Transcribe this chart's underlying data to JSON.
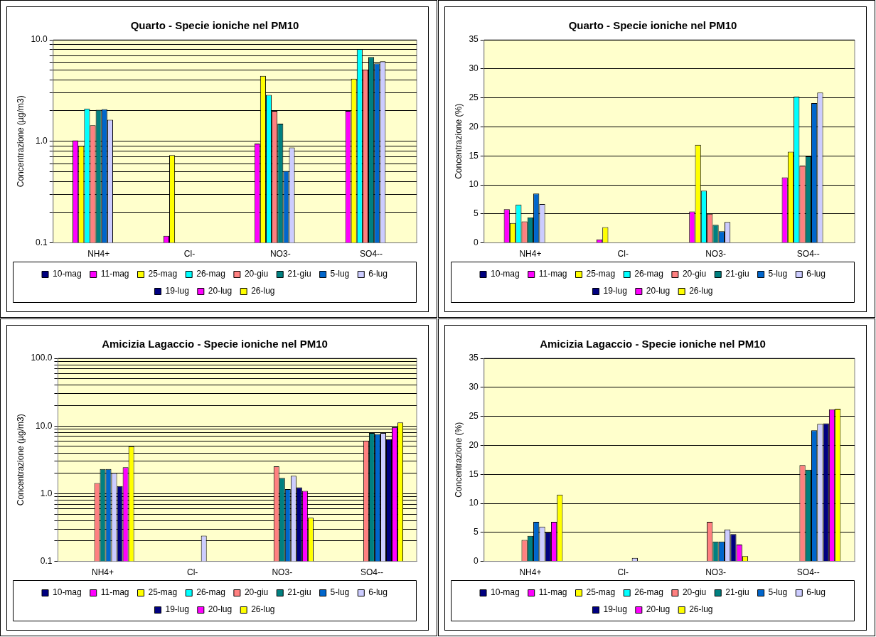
{
  "chart_data": [
    {
      "type": "bar",
      "title": "Quarto - Specie ioniche nel PM10",
      "ylabel": "Concentrazione (µg/m3)",
      "categories": [
        "NH4+",
        "Cl-",
        "NO3-",
        "SO4--"
      ],
      "log": "y",
      "ylim": [
        0.1,
        10
      ],
      "yticks": [
        {
          "value": 0.1,
          "label": "0.1"
        },
        {
          "value": 0.2,
          "label": null
        },
        {
          "value": 0.3,
          "label": null
        },
        {
          "value": 0.4,
          "label": null
        },
        {
          "value": 0.5,
          "label": null
        },
        {
          "value": 0.6,
          "label": null
        },
        {
          "value": 0.7,
          "label": null
        },
        {
          "value": 0.8,
          "label": null
        },
        {
          "value": 0.9,
          "label": null
        },
        {
          "value": 1,
          "label": "1.0"
        },
        {
          "value": 2,
          "label": null
        },
        {
          "value": 3,
          "label": null
        },
        {
          "value": 4,
          "label": null
        },
        {
          "value": 5,
          "label": null
        },
        {
          "value": 6,
          "label": null
        },
        {
          "value": 7,
          "label": null
        },
        {
          "value": 8,
          "label": null
        },
        {
          "value": 9,
          "label": null
        },
        {
          "value": 10,
          "label": "10.0"
        }
      ],
      "grid": "y",
      "legend": "bottom",
      "series": [
        {
          "name": "10-mag",
          "color": "#000080",
          "values": [
            null,
            null,
            null,
            null
          ]
        },
        {
          "name": "11-mag",
          "color": "#ff00ff",
          "values": [
            1.02,
            0.117,
            0.95,
            1.99
          ]
        },
        {
          "name": "25-mag",
          "color": "#ffff00",
          "values": [
            0.9,
            0.73,
            4.42,
            4.14
          ]
        },
        {
          "name": "26-mag",
          "color": "#00ffff",
          "values": [
            2.1,
            null,
            2.87,
            8.1
          ]
        },
        {
          "name": "20-giu",
          "color": "#ff8080",
          "values": [
            1.44,
            null,
            1.99,
            5.1
          ]
        },
        {
          "name": "21-giu",
          "color": "#008080",
          "values": [
            2.04,
            null,
            1.49,
            6.77
          ]
        },
        {
          "name": "5-lug",
          "color": "#0066cc",
          "values": [
            2.08,
            null,
            0.51,
            5.86
          ]
        },
        {
          "name": "6-lug",
          "color": "#ccccff",
          "values": [
            1.63,
            null,
            0.87,
            6.15
          ]
        },
        {
          "name": "19-lug",
          "color": "#000080",
          "values": [
            null,
            null,
            null,
            null
          ]
        },
        {
          "name": "20-lug",
          "color": "#ff00ff",
          "values": [
            null,
            null,
            null,
            null
          ]
        },
        {
          "name": "26-lug",
          "color": "#ffff00",
          "values": [
            null,
            null,
            null,
            null
          ]
        }
      ]
    },
    {
      "type": "bar",
      "title": "Quarto - Specie ioniche nel PM10",
      "ylabel": "Concentrazione (%)",
      "categories": [
        "NH4+",
        "Cl-",
        "NO3-",
        "SO4--"
      ],
      "ylim": [
        0,
        35
      ],
      "yticks": [
        0,
        5,
        10,
        15,
        20,
        25,
        30,
        35
      ],
      "grid": "y",
      "legend": "bottom",
      "series": [
        {
          "name": "10-mag",
          "color": "#000080",
          "values": [
            null,
            null,
            null,
            null
          ]
        },
        {
          "name": "11-mag",
          "color": "#ff00ff",
          "values": [
            5.8,
            0.6,
            5.4,
            11.3
          ]
        },
        {
          "name": "25-mag",
          "color": "#ffff00",
          "values": [
            3.4,
            2.7,
            16.9,
            15.7
          ]
        },
        {
          "name": "26-mag",
          "color": "#00ffff",
          "values": [
            6.6,
            null,
            9.0,
            25.2
          ]
        },
        {
          "name": "20-giu",
          "color": "#ff8080",
          "values": [
            3.7,
            null,
            5.0,
            13.3
          ]
        },
        {
          "name": "21-giu",
          "color": "#008080",
          "values": [
            4.4,
            null,
            3.1,
            14.9
          ]
        },
        {
          "name": "5-lug",
          "color": "#0066cc",
          "values": [
            8.5,
            null,
            2.0,
            24.1
          ]
        },
        {
          "name": "6-lug",
          "color": "#ccccff",
          "values": [
            6.7,
            null,
            3.6,
            25.9
          ]
        },
        {
          "name": "19-lug",
          "color": "#000080",
          "values": [
            null,
            null,
            null,
            null
          ]
        },
        {
          "name": "20-lug",
          "color": "#ff00ff",
          "values": [
            null,
            null,
            null,
            null
          ]
        },
        {
          "name": "26-lug",
          "color": "#ffff00",
          "values": [
            null,
            null,
            null,
            null
          ]
        }
      ]
    },
    {
      "type": "bar",
      "title": "Amicizia Lagaccio - Specie ioniche nel PM10",
      "ylabel": "Concentrazione (µg/m3)",
      "categories": [
        "NH4+",
        "Cl-",
        "NO3-",
        "SO4--"
      ],
      "log": "y",
      "ylim": [
        0.1,
        100
      ],
      "yticks": [
        {
          "value": 0.1,
          "label": "0.1"
        },
        {
          "value": 0.2,
          "label": null
        },
        {
          "value": 0.3,
          "label": null
        },
        {
          "value": 0.4,
          "label": null
        },
        {
          "value": 0.5,
          "label": null
        },
        {
          "value": 0.6,
          "label": null
        },
        {
          "value": 0.7,
          "label": null
        },
        {
          "value": 0.8,
          "label": null
        },
        {
          "value": 0.9,
          "label": null
        },
        {
          "value": 1,
          "label": "1.0"
        },
        {
          "value": 2,
          "label": null
        },
        {
          "value": 3,
          "label": null
        },
        {
          "value": 4,
          "label": null
        },
        {
          "value": 5,
          "label": null
        },
        {
          "value": 6,
          "label": null
        },
        {
          "value": 7,
          "label": null
        },
        {
          "value": 8,
          "label": null
        },
        {
          "value": 9,
          "label": null
        },
        {
          "value": 10,
          "label": "10.0"
        },
        {
          "value": 20,
          "label": null
        },
        {
          "value": 30,
          "label": null
        },
        {
          "value": 40,
          "label": null
        },
        {
          "value": 50,
          "label": null
        },
        {
          "value": 60,
          "label": null
        },
        {
          "value": 70,
          "label": null
        },
        {
          "value": 80,
          "label": null
        },
        {
          "value": 90,
          "label": null
        },
        {
          "value": 100,
          "label": "100.0"
        }
      ],
      "grid": "y",
      "legend": "bottom",
      "series": [
        {
          "name": "10-mag",
          "color": "#000080",
          "values": [
            null,
            null,
            null,
            null
          ]
        },
        {
          "name": "11-mag",
          "color": "#ff00ff",
          "values": [
            null,
            null,
            null,
            null
          ]
        },
        {
          "name": "25-mag",
          "color": "#ffff00",
          "values": [
            null,
            null,
            null,
            null
          ]
        },
        {
          "name": "26-mag",
          "color": "#00ffff",
          "values": [
            null,
            null,
            null,
            null
          ]
        },
        {
          "name": "20-giu",
          "color": "#ff8080",
          "values": [
            1.43,
            null,
            2.53,
            6.1
          ]
        },
        {
          "name": "21-giu",
          "color": "#008080",
          "values": [
            2.31,
            null,
            1.71,
            7.9
          ]
        },
        {
          "name": "5-lug",
          "color": "#0066cc",
          "values": [
            2.31,
            null,
            1.17,
            7.6
          ]
        },
        {
          "name": "6-lug",
          "color": "#ccccff",
          "values": [
            2.02,
            0.24,
            1.84,
            7.9
          ]
        },
        {
          "name": "19-lug",
          "color": "#000080",
          "values": [
            1.29,
            null,
            1.24,
            6.4
          ]
        },
        {
          "name": "20-lug",
          "color": "#ff00ff",
          "values": [
            2.46,
            null,
            1.1,
            9.6
          ]
        },
        {
          "name": "26-lug",
          "color": "#ffff00",
          "values": [
            5.0,
            null,
            0.44,
            11.3
          ]
        }
      ]
    },
    {
      "type": "bar",
      "title": "Amicizia Lagaccio - Specie ioniche nel PM10",
      "ylabel": "Concentrazione (%)",
      "categories": [
        "NH4+",
        "Cl-",
        "NO3-",
        "SO4--"
      ],
      "ylim": [
        0,
        35
      ],
      "yticks": [
        0,
        5,
        10,
        15,
        20,
        25,
        30,
        35
      ],
      "grid": "y",
      "legend": "bottom",
      "series": [
        {
          "name": "10-mag",
          "color": "#000080",
          "values": [
            null,
            null,
            null,
            null
          ]
        },
        {
          "name": "11-mag",
          "color": "#ff00ff",
          "values": [
            null,
            null,
            null,
            null
          ]
        },
        {
          "name": "25-mag",
          "color": "#ffff00",
          "values": [
            null,
            null,
            null,
            null
          ]
        },
        {
          "name": "26-mag",
          "color": "#00ffff",
          "values": [
            null,
            null,
            null,
            null
          ]
        },
        {
          "name": "20-giu",
          "color": "#ff8080",
          "values": [
            3.7,
            null,
            6.8,
            16.6
          ]
        },
        {
          "name": "21-giu",
          "color": "#008080",
          "values": [
            4.4,
            null,
            3.4,
            15.8
          ]
        },
        {
          "name": "5-lug",
          "color": "#0066cc",
          "values": [
            6.8,
            null,
            3.4,
            22.6
          ]
        },
        {
          "name": "6-lug",
          "color": "#ccccff",
          "values": [
            6.0,
            0.6,
            5.5,
            23.7
          ]
        },
        {
          "name": "19-lug",
          "color": "#000080",
          "values": [
            5.0,
            null,
            4.7,
            23.8
          ]
        },
        {
          "name": "20-lug",
          "color": "#ff00ff",
          "values": [
            6.8,
            null,
            2.9,
            26.2
          ]
        },
        {
          "name": "26-lug",
          "color": "#ffff00",
          "values": [
            11.5,
            null,
            0.9,
            26.3
          ]
        }
      ]
    }
  ]
}
